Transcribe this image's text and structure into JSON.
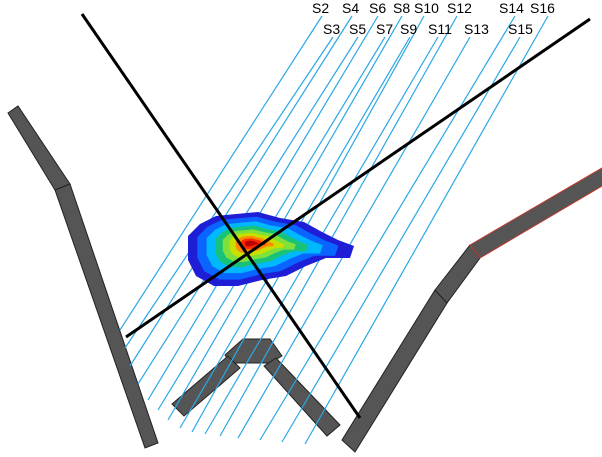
{
  "colors": {
    "background": "#ffffff",
    "section_line": "#2aa7e6",
    "axis_line": "#000000",
    "wall_fill": "#555555",
    "wall_stroke": "#222222",
    "wall_accent_edge": "#c0392b",
    "contour_levels": [
      "#1e1ed6",
      "#0a64ff",
      "#00b8ff",
      "#19c27a",
      "#7ee03a",
      "#c8e000",
      "#ff8a00",
      "#ff2a00",
      "#b80000"
    ]
  },
  "sections": {
    "top_row": [
      "S2",
      "S4",
      "S6",
      "S8",
      "S10",
      "S12",
      "S14",
      "S16"
    ],
    "bottom_row": [
      "S3",
      "S5",
      "S7",
      "S9",
      "S11",
      "S13",
      "S15"
    ]
  }
}
